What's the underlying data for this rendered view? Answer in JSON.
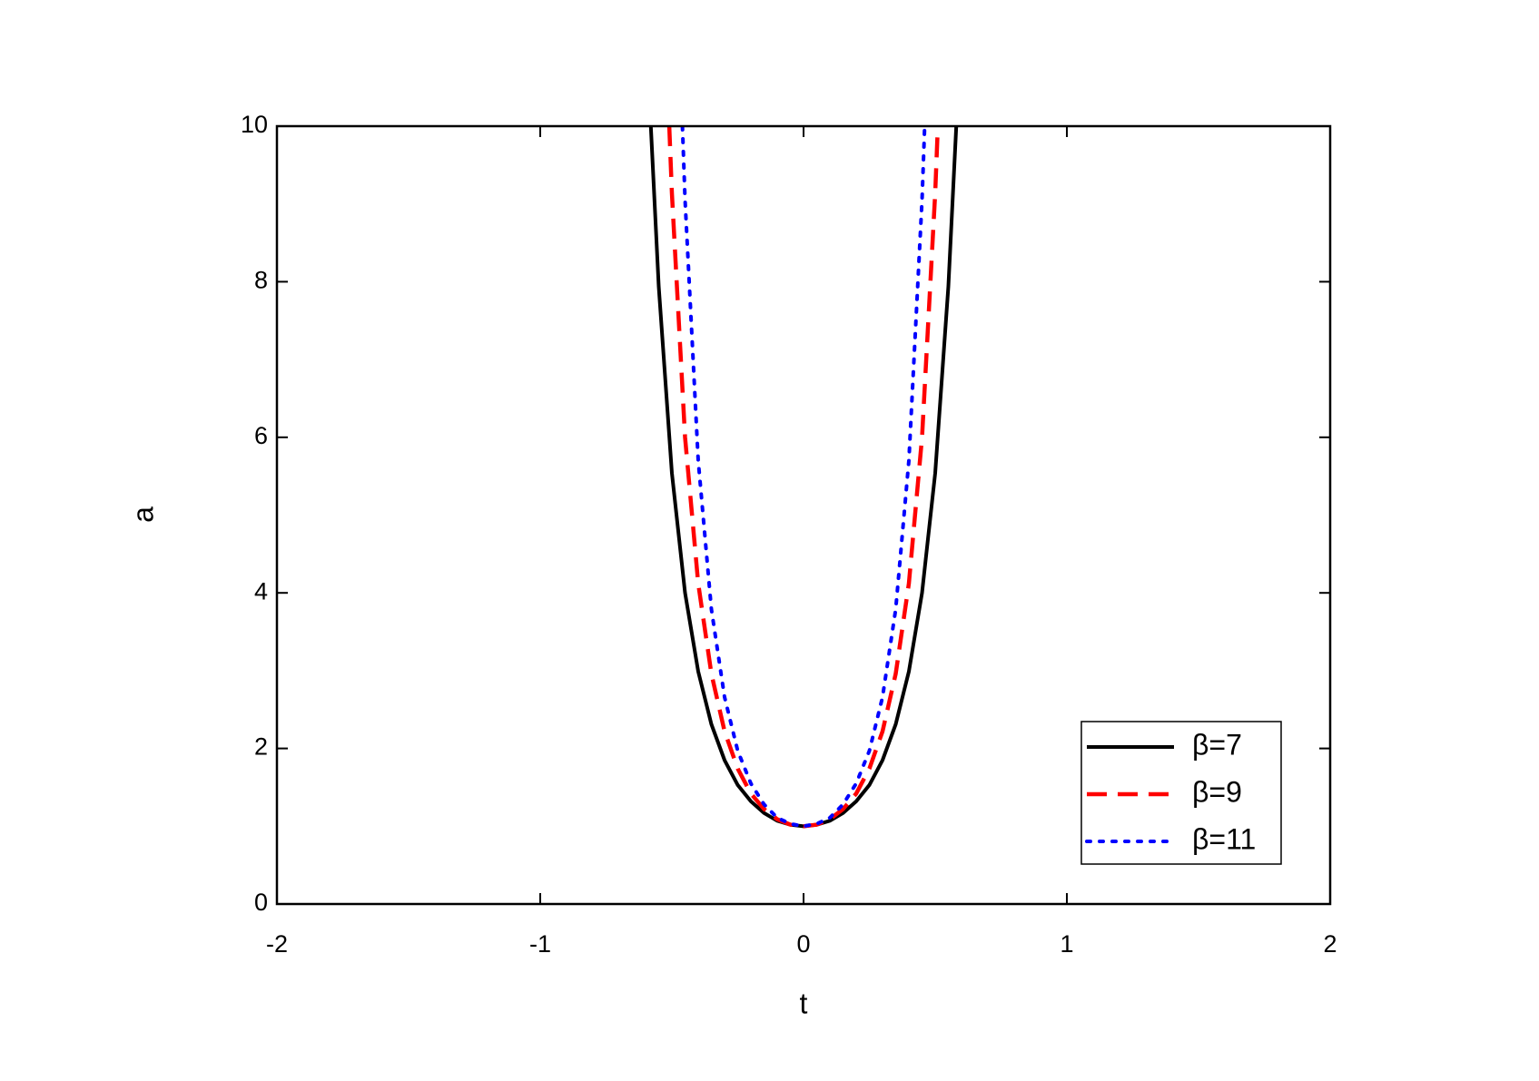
{
  "chart_data": {
    "type": "line",
    "xlabel": "t",
    "ylabel": "a",
    "xlim": [
      -2,
      2
    ],
    "xticks": [
      -2,
      -1,
      0,
      1,
      2
    ],
    "ylim": [
      0,
      10
    ],
    "yticks": [
      0,
      2,
      4,
      6,
      8,
      10
    ],
    "legend": "lower right",
    "series": [
      {
        "name": "β=7",
        "color": "#000000",
        "dash": "solid",
        "x": [
          -0.58,
          -0.55,
          -0.5,
          -0.45,
          -0.4,
          -0.35,
          -0.3,
          -0.25,
          -0.2,
          -0.15,
          -0.1,
          -0.05,
          0,
          0.05,
          0.1,
          0.15,
          0.2,
          0.25,
          0.3,
          0.35,
          0.4,
          0.45,
          0.5,
          0.55,
          0.58
        ],
        "values": [
          10,
          7.94,
          5.54,
          4.0,
          2.99,
          2.31,
          1.85,
          1.53,
          1.32,
          1.17,
          1.07,
          1.02,
          1,
          1.02,
          1.07,
          1.17,
          1.32,
          1.53,
          1.85,
          2.31,
          2.99,
          4.0,
          5.54,
          7.94,
          10
        ]
      },
      {
        "name": "β=9",
        "color": "#ff0000",
        "dash": "dashed",
        "x": [
          -0.51,
          -0.5,
          -0.45,
          -0.4,
          -0.35,
          -0.3,
          -0.25,
          -0.2,
          -0.15,
          -0.1,
          -0.05,
          0,
          0.05,
          0.1,
          0.15,
          0.2,
          0.25,
          0.3,
          0.35,
          0.4,
          0.45,
          0.5,
          0.51
        ],
        "values": [
          10,
          9.14,
          6.0,
          4.12,
          2.96,
          2.22,
          1.74,
          1.42,
          1.22,
          1.09,
          1.02,
          1,
          1.02,
          1.09,
          1.22,
          1.42,
          1.74,
          2.22,
          2.96,
          4.12,
          6.0,
          9.14,
          10
        ]
      },
      {
        "name": "β=11",
        "color": "#0000ff",
        "dash": "dotted",
        "x": [
          -0.46,
          -0.45,
          -0.4,
          -0.35,
          -0.3,
          -0.25,
          -0.2,
          -0.15,
          -0.1,
          -0.05,
          0,
          0.05,
          0.1,
          0.15,
          0.2,
          0.25,
          0.3,
          0.35,
          0.4,
          0.45,
          0.46
        ],
        "values": [
          10,
          9.05,
          5.7,
          3.79,
          2.66,
          1.97,
          1.55,
          1.28,
          1.11,
          1.03,
          1,
          1.03,
          1.11,
          1.28,
          1.55,
          1.97,
          2.66,
          3.79,
          5.7,
          9.05,
          10
        ]
      }
    ]
  }
}
